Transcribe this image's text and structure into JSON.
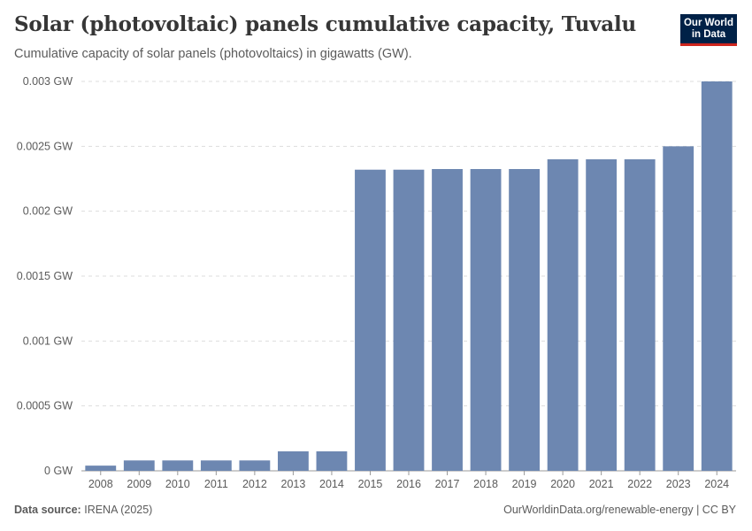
{
  "header": {
    "title": "Solar (photovoltaic) panels cumulative capacity, Tuvalu",
    "subtitle": "Cumulative capacity of solar panels (photovoltaics) in gigawatts (GW).",
    "logo_line1": "Our World",
    "logo_line2": "in Data"
  },
  "footer": {
    "source_label": "Data source:",
    "source_value": "IRENA (2025)",
    "link": "OurWorldinData.org/renewable-energy",
    "separator": "|",
    "license": "CC BY"
  },
  "colors": {
    "bar": "#6d87b1",
    "grid": "#dddddd",
    "axis": "#999999"
  },
  "chart_data": {
    "type": "bar",
    "title": "Solar (photovoltaic) panels cumulative capacity, Tuvalu",
    "xlabel": "",
    "ylabel": "GW",
    "ylim": [
      0,
      0.003
    ],
    "yticks": [
      0,
      0.0005,
      0.001,
      0.0015,
      0.002,
      0.0025,
      0.003
    ],
    "ytick_labels": [
      "0 GW",
      "0.0005 GW",
      "0.001 GW",
      "0.0015 GW",
      "0.002 GW",
      "0.0025 GW",
      "0.003 GW"
    ],
    "categories": [
      "2008",
      "2009",
      "2010",
      "2011",
      "2012",
      "2013",
      "2014",
      "2015",
      "2016",
      "2017",
      "2018",
      "2019",
      "2020",
      "2021",
      "2022",
      "2023",
      "2024"
    ],
    "values": [
      4e-05,
      8e-05,
      8e-05,
      8e-05,
      8e-05,
      0.00015,
      0.00015,
      0.00232,
      0.00232,
      0.002325,
      0.002325,
      0.002325,
      0.0024,
      0.0024,
      0.0024,
      0.0025,
      0.003
    ],
    "grid": true
  }
}
